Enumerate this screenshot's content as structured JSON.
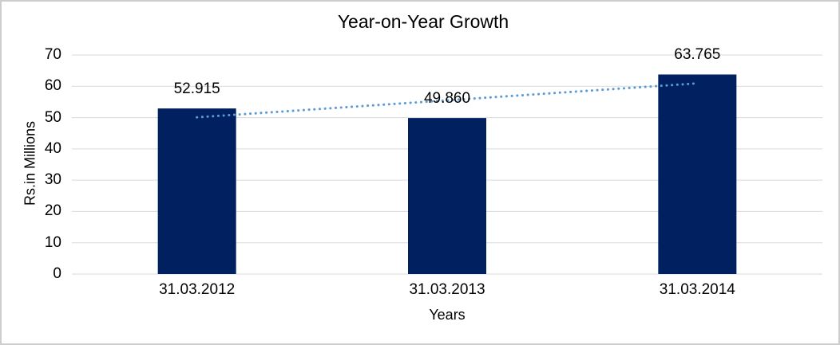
{
  "chart": {
    "frame_border_color": "#cdcdcd",
    "background_color": "#ffffff",
    "text_color": "#000000"
  },
  "chart_data": {
    "type": "bar",
    "title": "Year-on-Year Growth",
    "xlabel": "Years",
    "ylabel": "Rs.in Millions",
    "categories": [
      "31.03.2012",
      "31.03.2013",
      "31.03.2014"
    ],
    "values": [
      52.915,
      49.86,
      63.765
    ],
    "data_labels": [
      "52.915",
      "49.860",
      "63.765"
    ],
    "ylim": [
      0,
      70
    ],
    "yticks": [
      0,
      10,
      20,
      30,
      40,
      50,
      60,
      70
    ],
    "grid": true,
    "legend": "none",
    "bar_color": "#002060",
    "gridline_color": "#d9d9d9",
    "trendline": {
      "type": "linear",
      "style": "dotted",
      "color": "#5b9bd5"
    }
  }
}
